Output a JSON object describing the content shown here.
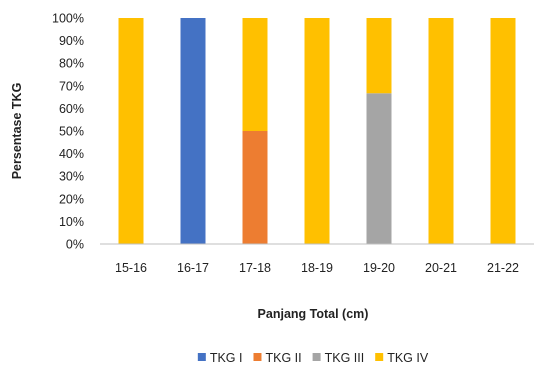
{
  "chart_data": {
    "type": "bar",
    "stacked": true,
    "categories": [
      "15-16",
      "16-17",
      "17-18",
      "18-19",
      "19-20",
      "20-21",
      "21-22"
    ],
    "series": [
      {
        "name": "TKG I",
        "color": "#4472C4",
        "values": [
          0,
          100,
          0,
          0,
          0,
          0,
          0
        ]
      },
      {
        "name": "TKG II",
        "color": "#ED7D31",
        "values": [
          0,
          0,
          50,
          0,
          0,
          0,
          0
        ]
      },
      {
        "name": "TKG III",
        "color": "#A5A5A5",
        "values": [
          0,
          0,
          0,
          0,
          66.7,
          0,
          0
        ]
      },
      {
        "name": "TKG IV",
        "color": "#FFC000",
        "values": [
          100,
          0,
          50,
          100,
          33.3,
          100,
          100
        ]
      }
    ],
    "yticks": [
      "0%",
      "10%",
      "20%",
      "30%",
      "40%",
      "50%",
      "60%",
      "70%",
      "80%",
      "90%",
      "100%"
    ],
    "ylim": [
      0,
      100
    ],
    "xlabel": "Panjang Total (cm)",
    "ylabel": "Persentase TKG",
    "grid": false,
    "legend_position": "bottom"
  }
}
